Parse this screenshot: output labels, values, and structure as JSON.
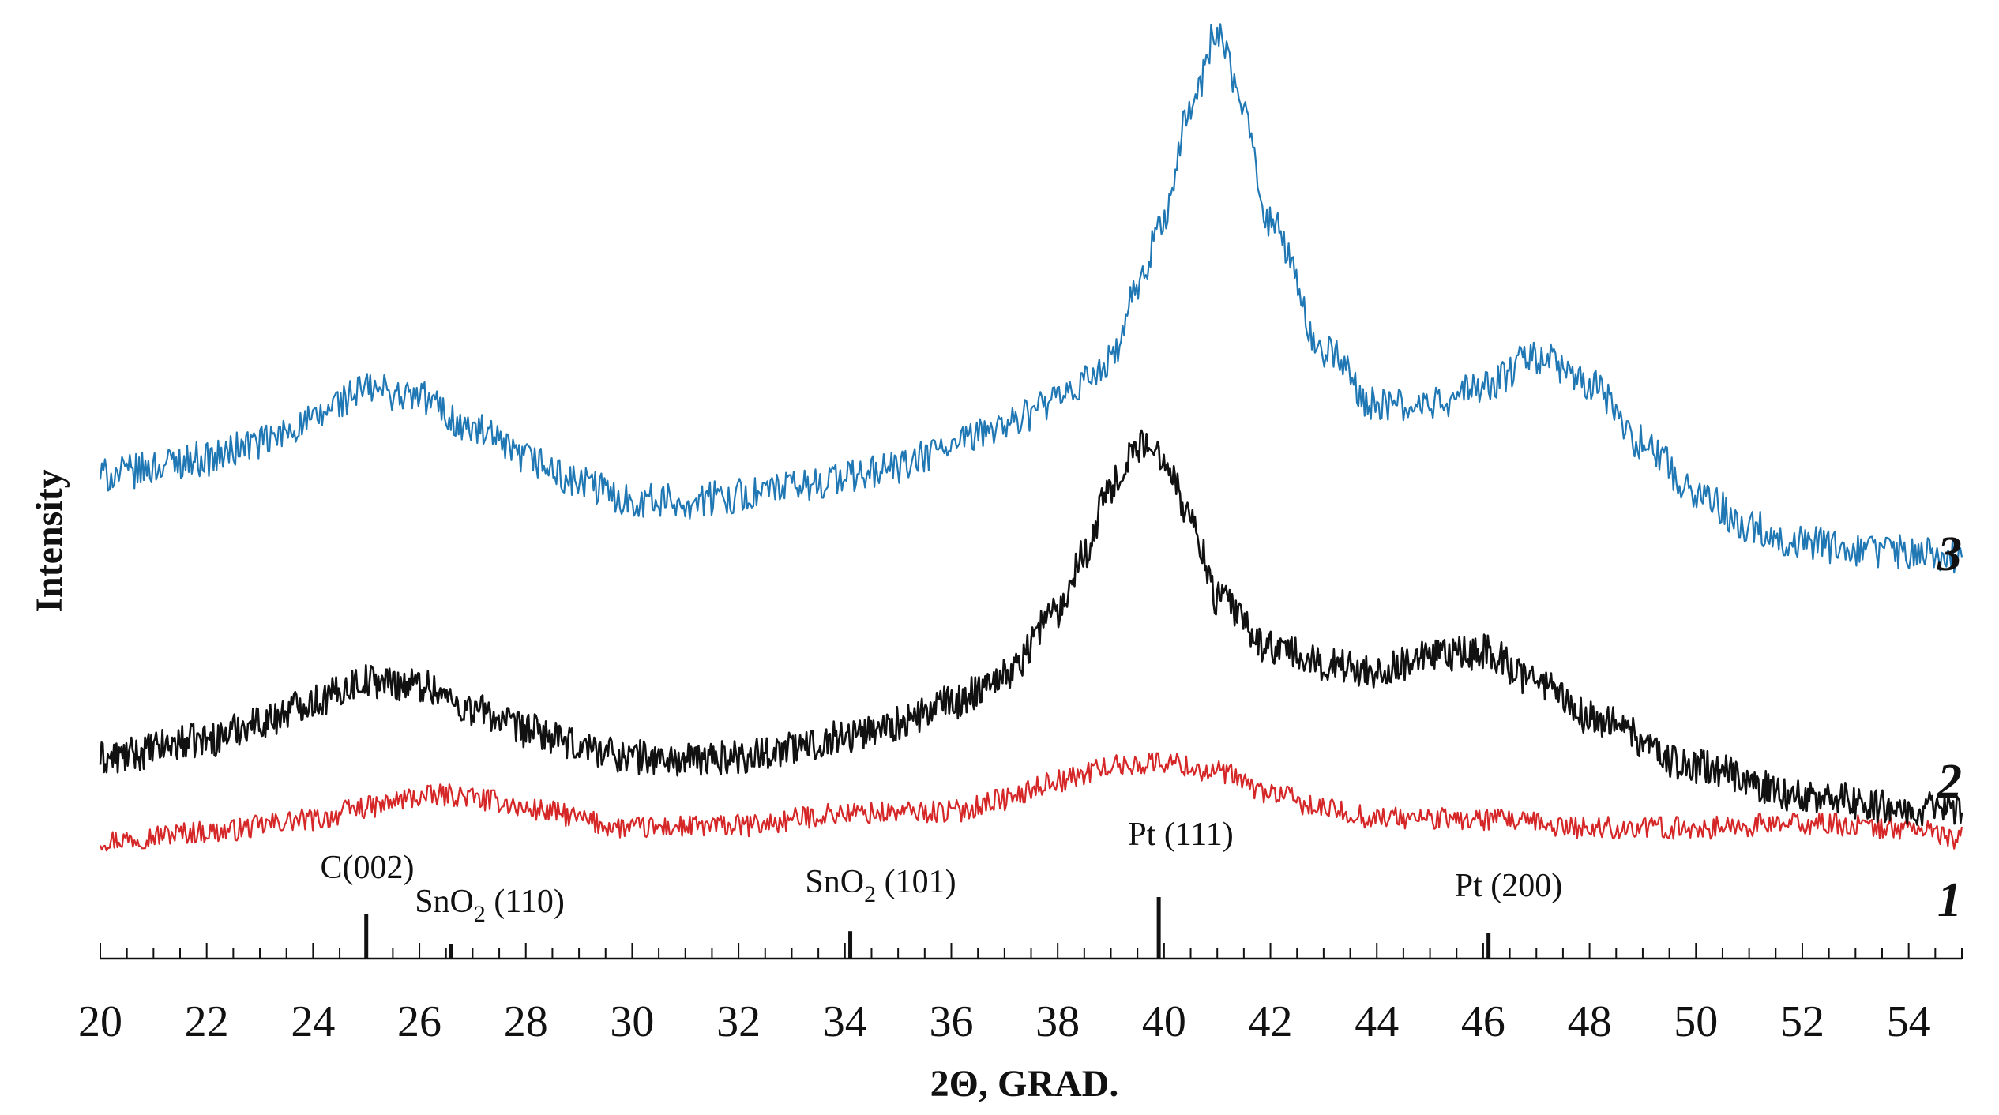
{
  "chart_data": {
    "type": "line",
    "title": "",
    "xlabel": "2Θ, GRAD.",
    "ylabel": "Intensity",
    "xlim": [
      20,
      55
    ],
    "x_ticks": [
      20,
      22,
      24,
      26,
      28,
      30,
      32,
      34,
      36,
      38,
      40,
      42,
      44,
      46,
      48,
      50,
      52,
      54
    ],
    "x_minor_step": 0.5,
    "y_ticks_shown": false,
    "grid": false,
    "series": [
      {
        "name": "1",
        "color": "#d62728",
        "label": "1",
        "x": [
          20,
          22,
          24,
          25,
          26,
          26.6,
          27.5,
          28,
          30,
          32,
          34,
          36,
          37,
          38,
          39,
          40,
          41,
          42,
          43,
          44,
          46,
          48,
          50,
          52,
          54,
          55
        ],
        "values": [
          0.1,
          0.14,
          0.2,
          0.26,
          0.31,
          0.32,
          0.29,
          0.25,
          0.16,
          0.17,
          0.23,
          0.24,
          0.3,
          0.39,
          0.46,
          0.48,
          0.43,
          0.33,
          0.25,
          0.21,
          0.2,
          0.16,
          0.16,
          0.18,
          0.16,
          0.11
        ]
      },
      {
        "name": "2",
        "color": "#111111",
        "label": "2",
        "x": [
          20,
          22,
          23,
          24,
          25,
          26,
          27,
          28,
          29,
          30,
          31,
          32,
          33,
          34,
          35,
          36,
          37,
          38,
          38.5,
          39,
          39.5,
          40,
          40.5,
          41,
          42,
          43,
          44,
          45,
          46,
          47,
          48,
          50,
          52,
          54,
          55
        ],
        "values": [
          0.44,
          0.53,
          0.62,
          0.72,
          0.82,
          0.8,
          0.68,
          0.58,
          0.5,
          0.45,
          0.43,
          0.45,
          0.49,
          0.55,
          0.61,
          0.71,
          0.85,
          1.16,
          1.45,
          1.77,
          1.96,
          1.92,
          1.61,
          1.22,
          0.98,
          0.9,
          0.87,
          0.93,
          0.96,
          0.82,
          0.64,
          0.4,
          0.26,
          0.2,
          0.18
        ]
      },
      {
        "name": "3",
        "color": "#1f77b4",
        "label": "3",
        "x": [
          20,
          22,
          23,
          24,
          24.5,
          25,
          26,
          27,
          28,
          29,
          30,
          31,
          32,
          33,
          34,
          35,
          36,
          37,
          38,
          39,
          39.5,
          40,
          40.5,
          41,
          41.5,
          42,
          43,
          44,
          45,
          46,
          47,
          48,
          49,
          50,
          51,
          52,
          53,
          54,
          55
        ],
        "values": [
          1.82,
          1.9,
          1.98,
          2.08,
          2.18,
          2.24,
          2.2,
          2.04,
          1.9,
          1.78,
          1.7,
          1.69,
          1.72,
          1.76,
          1.81,
          1.86,
          1.96,
          2.07,
          2.18,
          2.37,
          2.72,
          3.08,
          3.61,
          3.98,
          3.58,
          3.05,
          2.43,
          2.16,
          2.16,
          2.25,
          2.4,
          2.26,
          1.98,
          1.74,
          1.57,
          1.49,
          1.45,
          1.45,
          1.42
        ]
      }
    ],
    "reference_lines": [
      {
        "label_main": "C(002)",
        "label_sub": "",
        "label_tail": "",
        "x": 25.0,
        "relative_height": 0.95
      },
      {
        "label_main": "SnO",
        "label_sub": "2",
        "label_tail": " (110)",
        "x": 26.6,
        "relative_height": 0.3
      },
      {
        "label_main": "SnO",
        "label_sub": "2",
        "label_tail": " (101)",
        "x": 34.1,
        "relative_height": 0.58
      },
      {
        "label_main": "Pt (111)",
        "label_sub": "",
        "label_tail": "",
        "x": 39.9,
        "relative_height": 1.3
      },
      {
        "label_main": "Pt (200)",
        "label_sub": "",
        "label_tail": "",
        "x": 46.1,
        "relative_height": 0.55
      }
    ]
  }
}
